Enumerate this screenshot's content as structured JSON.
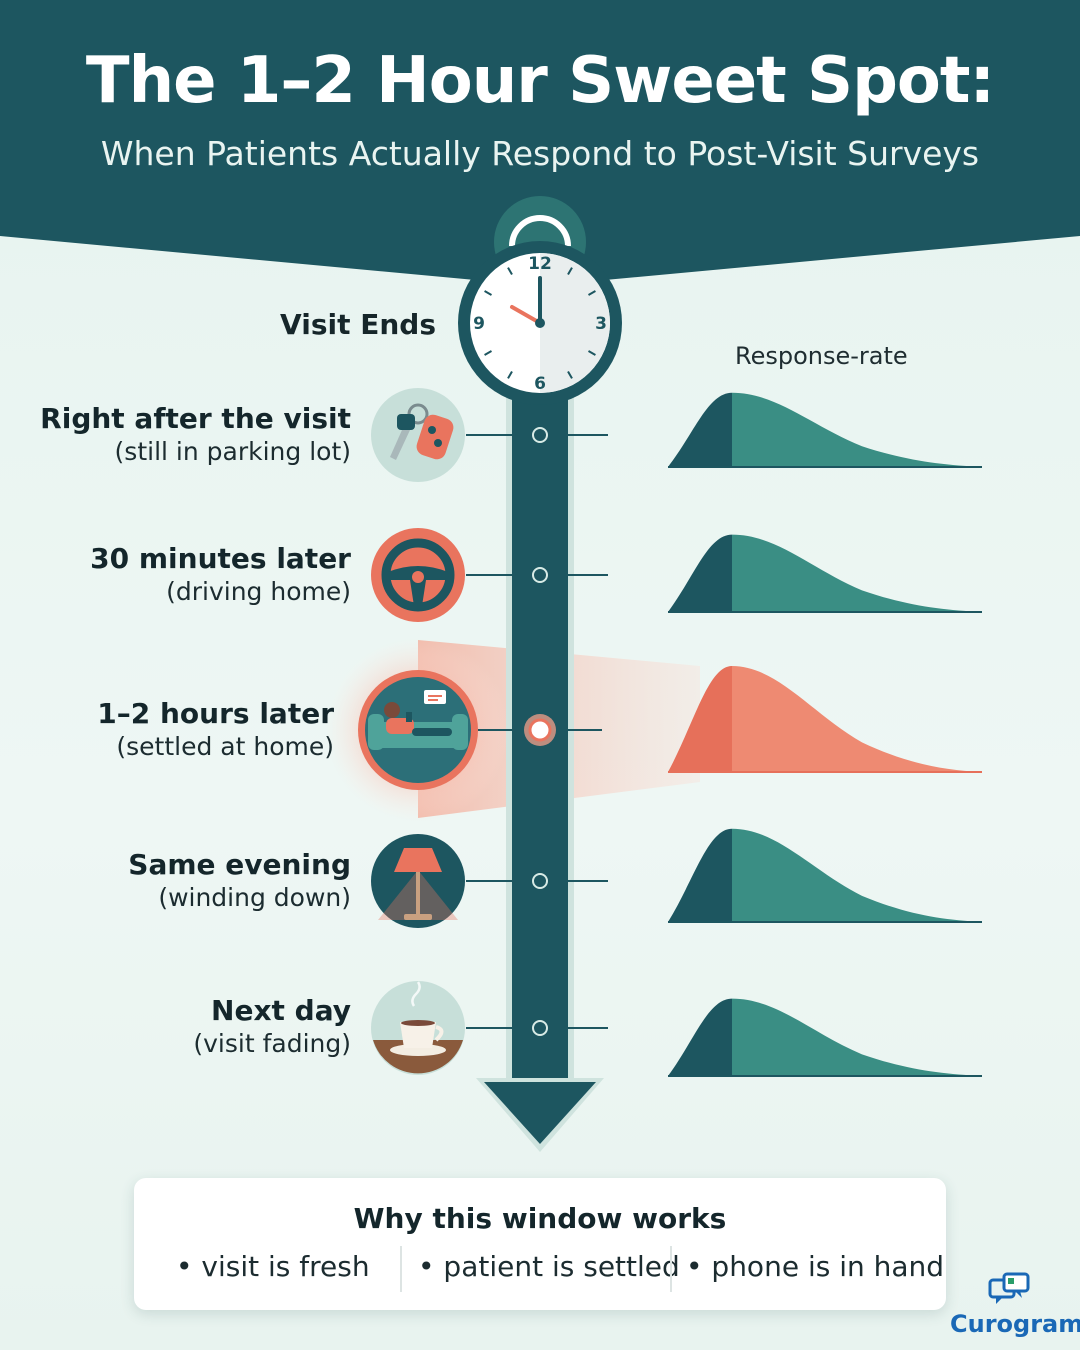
{
  "header": {
    "title": "The 1–2 Hour Sweet Spot:",
    "subtitle": "When Patients Actually Respond to Post-Visit Surveys"
  },
  "timeline": {
    "start_label": "Visit Ends",
    "clock_numbers": [
      "12",
      "3",
      "6",
      "9"
    ],
    "response_rate_label": "Response-rate",
    "stages": [
      {
        "title": "Right after the visit",
        "context": "(still in parking lot)",
        "icon": "car-keys-icon",
        "highlight": false,
        "peak_rate": 0.7
      },
      {
        "title": "30 minutes later",
        "context": "(driving home)",
        "icon": "steering-wheel-icon",
        "highlight": false,
        "peak_rate": 0.73
      },
      {
        "title": "1–2 hours later",
        "context": "(settled at home)",
        "icon": "person-on-couch-icon",
        "highlight": true,
        "peak_rate": 1.0
      },
      {
        "title": "Same evening",
        "context": "(winding down)",
        "icon": "lamp-icon",
        "highlight": false,
        "peak_rate": 0.88
      },
      {
        "title": "Next day",
        "context": "(visit fading)",
        "icon": "coffee-cup-icon",
        "highlight": false,
        "peak_rate": 0.73
      }
    ]
  },
  "why_card": {
    "title": "Why this window works",
    "reasons": [
      "• visit is fresh",
      "• patient is settled",
      "• phone is in hand"
    ]
  },
  "brand": {
    "name": "Curogram",
    "icon": "chat-bubbles-icon"
  },
  "colors": {
    "teal_dark": "#1d5660",
    "teal": "#3a8e84",
    "coral": "#e9745e",
    "background": "#e9f4f0",
    "brand_blue": "#1a68b6"
  }
}
